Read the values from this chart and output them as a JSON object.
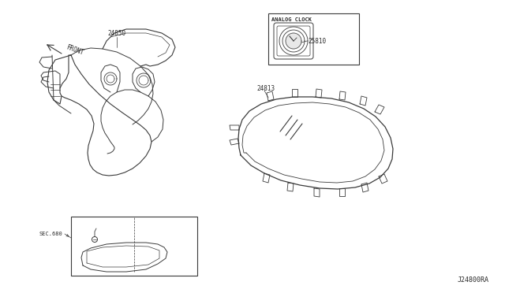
{
  "bg_color": "#ffffff",
  "line_color": "#3a3a3a",
  "diagram_id": "J24800RA",
  "labels": {
    "sec680": "SEC.680",
    "part24850": "24850",
    "part24813": "24813",
    "part25810": "25810",
    "analog_clock": "ANALOG CLOCK",
    "front": "FRONT"
  },
  "text_color": "#2a2a2a"
}
